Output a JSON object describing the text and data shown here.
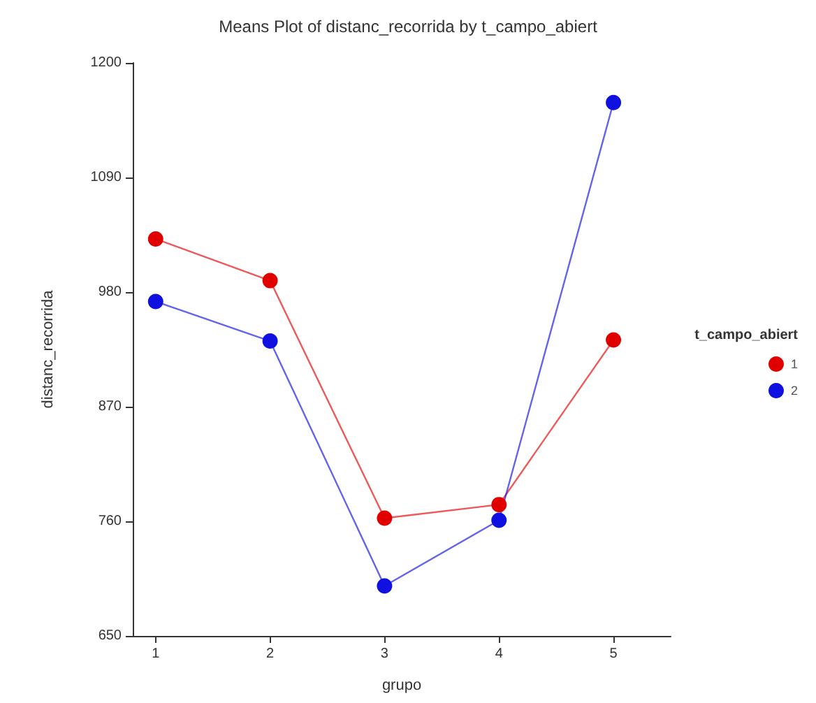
{
  "chart_data": {
    "type": "line",
    "title": "Means Plot of distanc_recorrida by t_campo_abiert",
    "xlabel": "grupo",
    "ylabel": "distanc_recorrida",
    "legend_title": "t_campo_abiert",
    "x": [
      1,
      2,
      3,
      4,
      5
    ],
    "series": [
      {
        "name": "1",
        "color": "#e00000",
        "values": [
          1031,
          991,
          763,
          776,
          934
        ]
      },
      {
        "name": "2",
        "color": "#1010e0",
        "values": [
          971,
          933,
          698,
          761,
          1162
        ]
      }
    ],
    "xlim": [
      0.8,
      5.5
    ],
    "xticks": [
      1,
      2,
      3,
      4,
      5
    ],
    "ylim": [
      650,
      1200
    ],
    "yticks": [
      650,
      760,
      870,
      980,
      1090,
      1200
    ],
    "grid": false,
    "legend": "right",
    "marker": "circle",
    "line_style": "solid"
  }
}
